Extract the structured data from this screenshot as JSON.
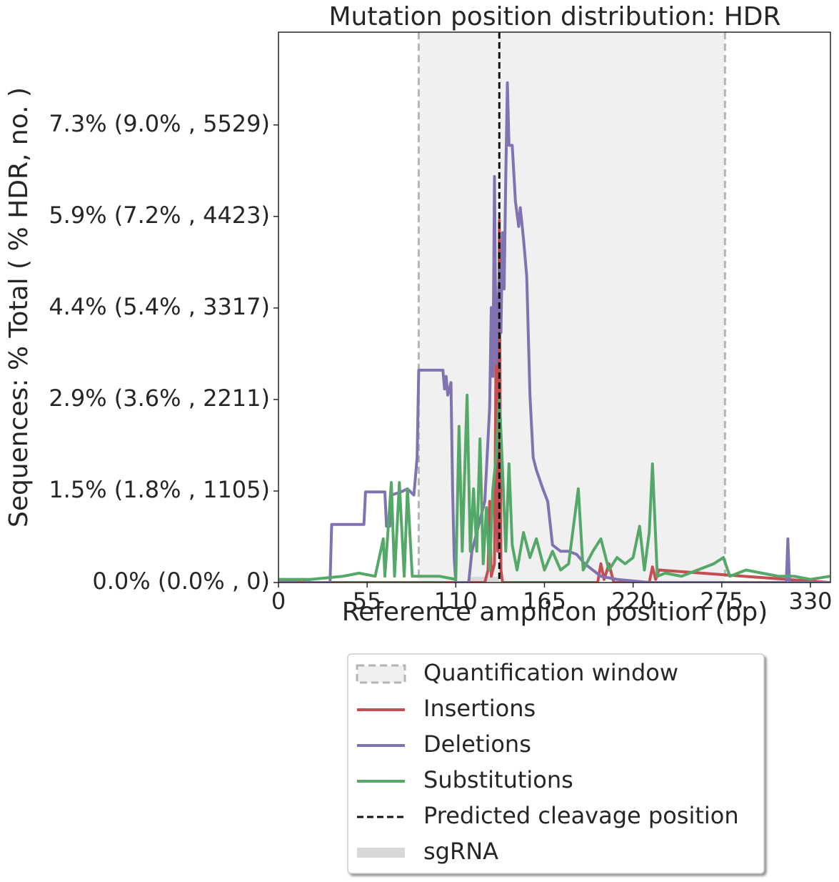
{
  "chart_data": {
    "type": "line",
    "title": "Mutation position distribution: HDR",
    "x_label": "Reference amplicon position (bp)",
    "y_label": "Sequences: % Total ( % HDR, no. )",
    "xlim": [
      0,
      342.4
    ],
    "ylim": [
      0,
      8.81
    ],
    "xticks": [
      0,
      55,
      110,
      165,
      220,
      275,
      330
    ],
    "yticks": [
      {
        "value": 0,
        "label": "0.0% (0.0% , 0)"
      },
      {
        "value": 1.465,
        "label": "1.5% (1.8% , 1105)"
      },
      {
        "value": 2.93,
        "label": "2.9% (3.6% , 2211)"
      },
      {
        "value": 4.395,
        "label": "4.4% (5.4% , 3317)"
      },
      {
        "value": 5.86,
        "label": "5.9% (7.2% , 4423)"
      },
      {
        "value": 7.325,
        "label": "7.3% (9.0% , 5529)"
      }
    ],
    "quantification_window": {
      "label": "Quantification window",
      "range": [
        87,
        277
      ],
      "color": "#f0f0f0",
      "edge_color": "#b4b4b4"
    },
    "cleavage_position": {
      "label": "Predicted cleavage position",
      "value": 137,
      "color": "#111111"
    },
    "sgrna": {
      "label": "sgRNA",
      "range": [
        118,
        137
      ],
      "color": "#d8d8d8"
    },
    "series": [
      {
        "name": "Insertions",
        "color": "#c44e52",
        "x": [
          0,
          100,
          128,
          130,
          131,
          132,
          134,
          135,
          136,
          137,
          138,
          139,
          141,
          150,
          198,
          200,
          202,
          205,
          208,
          230,
          232,
          234,
          236,
          342
        ],
        "values": [
          0,
          0,
          0,
          0.2,
          1.3,
          0.1,
          0.3,
          3.9,
          0.5,
          5.8,
          0.2,
          0,
          0,
          0,
          0,
          0.3,
          0.05,
          0.3,
          0,
          0,
          0.25,
          0.05,
          0.2,
          0
        ]
      },
      {
        "name": "Deletions",
        "color": "#8172b2",
        "x": [
          0,
          15,
          20,
          32,
          33,
          53,
          54,
          66,
          67,
          69,
          70,
          76,
          80,
          84,
          86,
          87,
          102,
          103,
          104,
          105,
          107,
          108,
          109,
          110,
          118,
          120,
          125,
          128,
          131,
          132,
          133,
          134,
          135,
          137,
          138,
          139,
          140,
          141,
          142,
          143,
          145,
          147,
          149,
          150,
          152,
          154,
          156,
          158,
          160,
          164,
          167,
          170,
          175,
          180,
          185,
          190,
          200,
          210,
          230,
          315,
          316,
          317,
          318,
          342
        ],
        "values": [
          0,
          0.05,
          0,
          0,
          0.93,
          0.93,
          1.45,
          1.45,
          0.9,
          0.9,
          1.4,
          1.45,
          1.5,
          1.4,
          2.0,
          3.4,
          3.4,
          3.1,
          3.3,
          3.0,
          3.2,
          1.5,
          0.4,
          0,
          0,
          0.5,
          1.0,
          1.3,
          2.8,
          4.4,
          3.3,
          6.5,
          3.5,
          5.0,
          4.0,
          5.6,
          4.7,
          6.5,
          8.0,
          7.0,
          7.0,
          6.1,
          5.7,
          6.0,
          5.5,
          4.9,
          3.0,
          2.0,
          1.8,
          1.5,
          1.3,
          0.6,
          0.5,
          0.5,
          0.45,
          0.3,
          0.1,
          0.05,
          0,
          0,
          0.7,
          0,
          0,
          0
        ]
      },
      {
        "name": "Substitutions",
        "color": "#55a868",
        "x": [
          0,
          20,
          40,
          50,
          60,
          65,
          66,
          70,
          72,
          75,
          78,
          80,
          83,
          88,
          100,
          110,
          112,
          114,
          117,
          119,
          121,
          123,
          125,
          127,
          129,
          131,
          133,
          135,
          137,
          139,
          141,
          143,
          145,
          148,
          152,
          156,
          160,
          165,
          170,
          175,
          180,
          186,
          189,
          195,
          200,
          205,
          210,
          215,
          220,
          224,
          227,
          230,
          232,
          235,
          240,
          250,
          260,
          270,
          276,
          280,
          290,
          300,
          310,
          320,
          330,
          342
        ],
        "values": [
          0.05,
          0.05,
          0.1,
          0.15,
          0.1,
          0.7,
          0.1,
          1.6,
          0.1,
          1.6,
          0.1,
          1.5,
          0.1,
          0.1,
          0.1,
          0.05,
          2.5,
          0.5,
          3.0,
          0.5,
          1.5,
          0.5,
          2.3,
          0.3,
          1.2,
          0.2,
          1.5,
          2.0,
          3.0,
          1.8,
          0.5,
          1.9,
          0.6,
          0.2,
          0.8,
          0.4,
          0.7,
          0.2,
          0.5,
          0.2,
          0.3,
          1.5,
          0.2,
          0.5,
          0.7,
          0.2,
          0.4,
          0.3,
          0.4,
          0.9,
          0.2,
          0.8,
          1.9,
          0.1,
          0.15,
          0.1,
          0.2,
          0.3,
          0.4,
          0.1,
          0.2,
          0.15,
          0.1,
          0.1,
          0.05,
          0.1
        ]
      }
    ]
  }
}
